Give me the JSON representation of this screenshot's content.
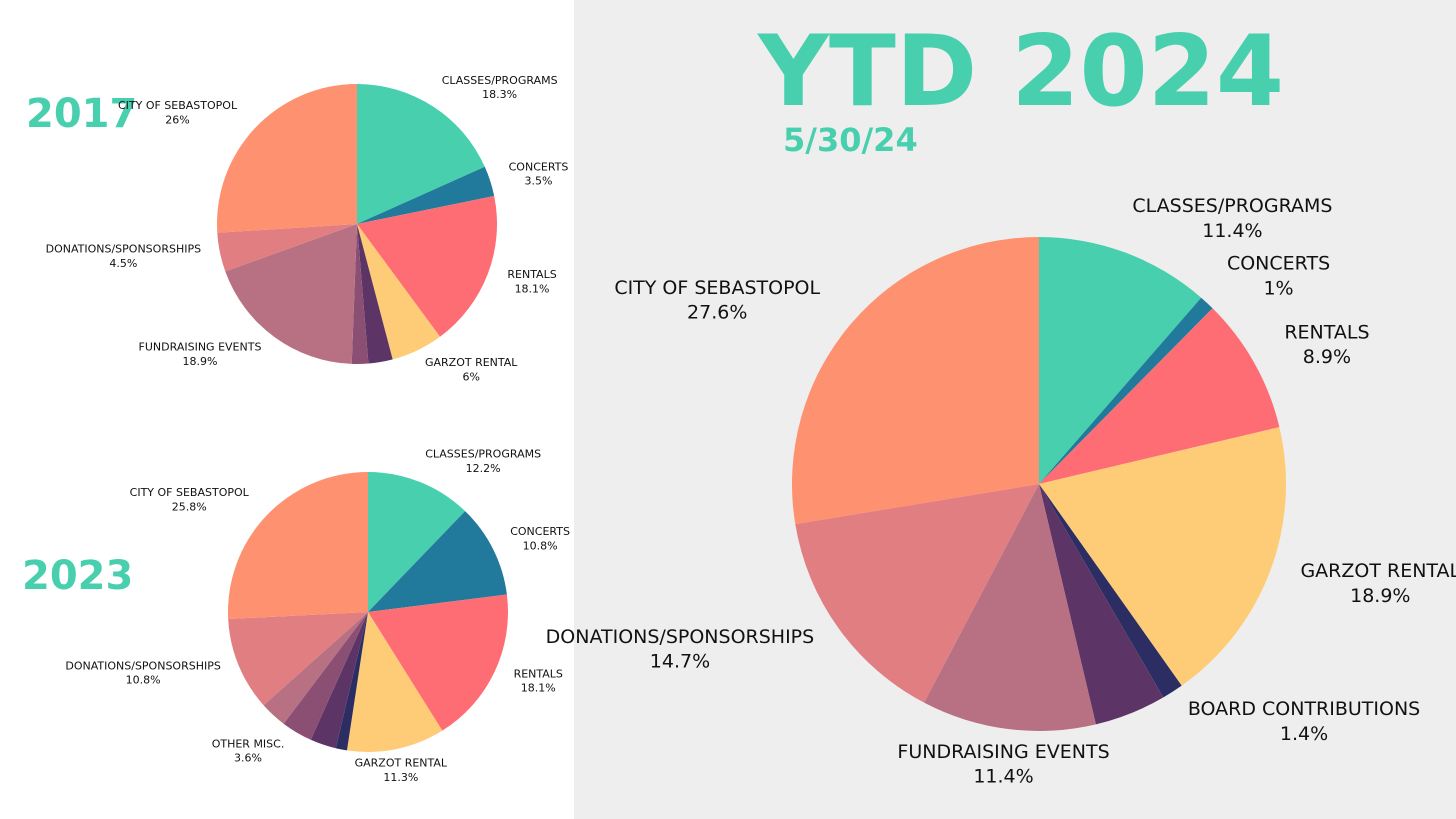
{
  "chart_data": [
    {
      "type": "pie",
      "title": "2017",
      "categories": [
        "CLASSES/PROGRAMS",
        "CONCERTS",
        "RENTALS",
        "GARZOT RENTAL",
        null,
        null,
        "FUNDRAISING EVENTS",
        "DONATIONS/SPONSORSHIPS",
        "CITY OF SEBASTOPOL"
      ],
      "values": [
        18.3,
        3.5,
        18.1,
        6,
        2.8,
        1.9,
        18.9,
        4.5,
        26
      ],
      "value_labels": [
        "18.3%",
        "3.5%",
        "18.1%",
        "6%",
        null,
        null,
        "18.9%",
        "4.5%",
        "26%"
      ],
      "colors": [
        "#48cfae",
        "#217a9b",
        "#fe6d73",
        "#fecb77",
        "#5c3566",
        "#8c4f74",
        "#b87083",
        "#e07e82",
        "#fe9170"
      ]
    },
    {
      "type": "pie",
      "title": "2023",
      "categories": [
        "CLASSES/PROGRAMS",
        "CONCERTS",
        "RENTALS",
        "GARZOT RENTAL",
        null,
        null,
        "OTHER MISC.",
        null,
        "DONATIONS/SPONSORSHIPS",
        "CITY OF SEBASTOPOL"
      ],
      "values": [
        12.2,
        10.8,
        18.1,
        11.3,
        1.3,
        3,
        3.6,
        3.1,
        10.8,
        25.8
      ],
      "value_labels": [
        "12.2%",
        "10.8%",
        "18.1%",
        "11.3%",
        null,
        null,
        "3.6%",
        null,
        "10.8%",
        "25.8%"
      ],
      "colors": [
        "#48cfae",
        "#217a9b",
        "#fe6d73",
        "#fecb77",
        "#2b2d63",
        "#5c3566",
        "#8c4f74",
        "#b87083",
        "#e07e82",
        "#fe9170"
      ]
    },
    {
      "type": "pie",
      "title": "YTD 2024",
      "subtitle": "5/30/24",
      "categories": [
        "CLASSES/PROGRAMS",
        "CONCERTS",
        "RENTALS",
        "GARZOT RENTAL",
        "BOARD CONTRIBUTIONS",
        null,
        "FUNDRAISING EVENTS",
        "DONATIONS/SPONSORSHIPS",
        "CITY OF SEBASTOPOL"
      ],
      "values": [
        11.4,
        1,
        8.9,
        18.9,
        1.4,
        4.7,
        11.4,
        14.7,
        27.6
      ],
      "value_labels": [
        "11.4%",
        "1%",
        "8.9%",
        "18.9%",
        "1.4%",
        null,
        "11.4%",
        "14.7%",
        "27.6%"
      ],
      "colors": [
        "#48cfae",
        "#217a9b",
        "#fe6d73",
        "#fecb77",
        "#2b2d63",
        "#5c3566",
        "#b87083",
        "#e07e82",
        "#fe9170"
      ]
    }
  ]
}
